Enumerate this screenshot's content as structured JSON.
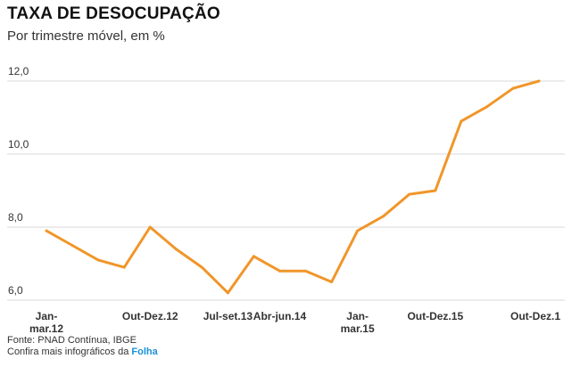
{
  "header": {
    "title": "TAXA DE DESOCUPAÇÃO",
    "subtitle": "Por trimestre móvel, em %"
  },
  "footer": {
    "source": "Fonte: PNAD Contínua, IBGE",
    "more_prefix": "Confira mais infográficos da ",
    "brand": "Folha"
  },
  "colors": {
    "line": "#f0962a",
    "grid": "#d9d9d9",
    "brand": "#1a8fd8"
  },
  "chart_data": {
    "type": "line",
    "title": "TAXA DE DESOCUPAÇÃO",
    "subtitle": "Por trimestre móvel, em %",
    "ylim": [
      6.0,
      12.0
    ],
    "yticks": [
      {
        "value": 6.0,
        "label": "6,0"
      },
      {
        "value": 8.0,
        "label": "8,0"
      },
      {
        "value": 10.0,
        "label": "10,0"
      },
      {
        "value": 12.0,
        "label": "12,0"
      }
    ],
    "grid": true,
    "x_tick_labels": [
      {
        "index": 0,
        "lines": [
          "Jan-",
          "mar.12"
        ]
      },
      {
        "index": 4,
        "lines": [
          "Out-Dez.12"
        ]
      },
      {
        "index": 7,
        "lines": [
          "Jul-set.13"
        ]
      },
      {
        "index": 9,
        "lines": [
          "Abr-jun.14"
        ]
      },
      {
        "index": 12,
        "lines": [
          "Jan-",
          "mar.15"
        ]
      },
      {
        "index": 15,
        "lines": [
          "Out-Dez.15"
        ]
      },
      {
        "index": 19,
        "lines": [
          "Out-Dez.1"
        ]
      }
    ],
    "series": [
      {
        "values": [
          7.9,
          7.5,
          7.1,
          6.9,
          8.0,
          7.4,
          6.9,
          6.2,
          7.2,
          6.8,
          6.8,
          6.5,
          7.9,
          8.3,
          8.9,
          9.0,
          10.9,
          11.3,
          11.8,
          12.0
        ]
      }
    ]
  }
}
